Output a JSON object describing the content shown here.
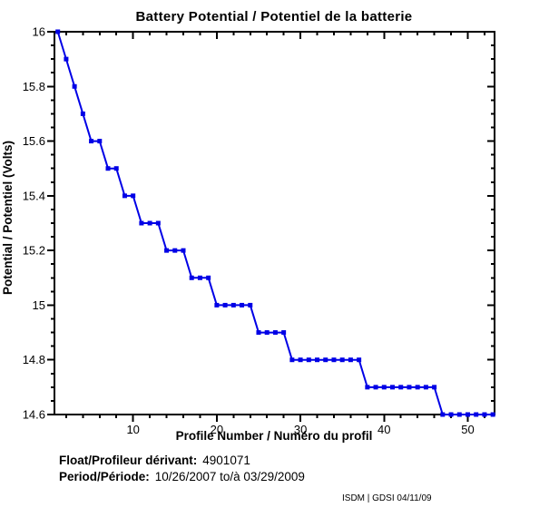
{
  "footer": "ISDM | GDSI 04/11/09",
  "annotations": {
    "float_label": "Float/Profileur dérivant:",
    "float_value": "4901071",
    "period_label": "Period/Période:",
    "period_value": "10/26/2007 to/à 03/29/2009"
  },
  "chart_data": {
    "type": "line",
    "title": "Battery Potential / Potentiel de la batterie",
    "xlabel": "Profile Number / Numéro du profil",
    "ylabel": "Potential / Potentiel (Volts)",
    "legend": "none",
    "grid": false,
    "line_color": "#0000E6",
    "marker": "square",
    "xlim": [
      0.6,
      53.2
    ],
    "ylim": [
      14.6,
      16
    ],
    "x_ticks": {
      "values": [
        10,
        20,
        30,
        40,
        50
      ],
      "labels": [
        "10",
        "20",
        "30",
        "40",
        "50"
      ]
    },
    "y_ticks": {
      "values": [
        16,
        15.8,
        15.6,
        15.4,
        15.2,
        15,
        14.8,
        14.6
      ],
      "labels": [
        "16",
        "15.8",
        "15.6",
        "15.4",
        "15.2",
        "15",
        "14.8",
        "14.6"
      ]
    },
    "x_minor_start": 2,
    "x_minor_step": 2,
    "y_minor_step": 0.05,
    "x": [
      1,
      2,
      3,
      4,
      5,
      6,
      7,
      8,
      9,
      10,
      11,
      12,
      13,
      14,
      15,
      16,
      17,
      18,
      19,
      20,
      21,
      22,
      23,
      24,
      25,
      26,
      27,
      28,
      29,
      30,
      31,
      32,
      33,
      34,
      35,
      36,
      37,
      38,
      39,
      40,
      41,
      42,
      43,
      44,
      45,
      46,
      47,
      48,
      49,
      50,
      51,
      52,
      53
    ],
    "y": [
      16,
      15.9,
      15.8,
      15.7,
      15.6,
      15.6,
      15.5,
      15.5,
      15.4,
      15.4,
      15.3,
      15.3,
      15.3,
      15.2,
      15.2,
      15.2,
      15.1,
      15.1,
      15.1,
      15,
      15,
      15,
      15,
      15,
      14.9,
      14.9,
      14.9,
      14.9,
      14.8,
      14.8,
      14.8,
      14.8,
      14.8,
      14.8,
      14.8,
      14.8,
      14.8,
      14.7,
      14.7,
      14.7,
      14.7,
      14.7,
      14.7,
      14.7,
      14.7,
      14.7,
      14.6,
      14.6,
      14.6,
      14.6,
      14.6,
      14.6,
      14.6
    ]
  }
}
